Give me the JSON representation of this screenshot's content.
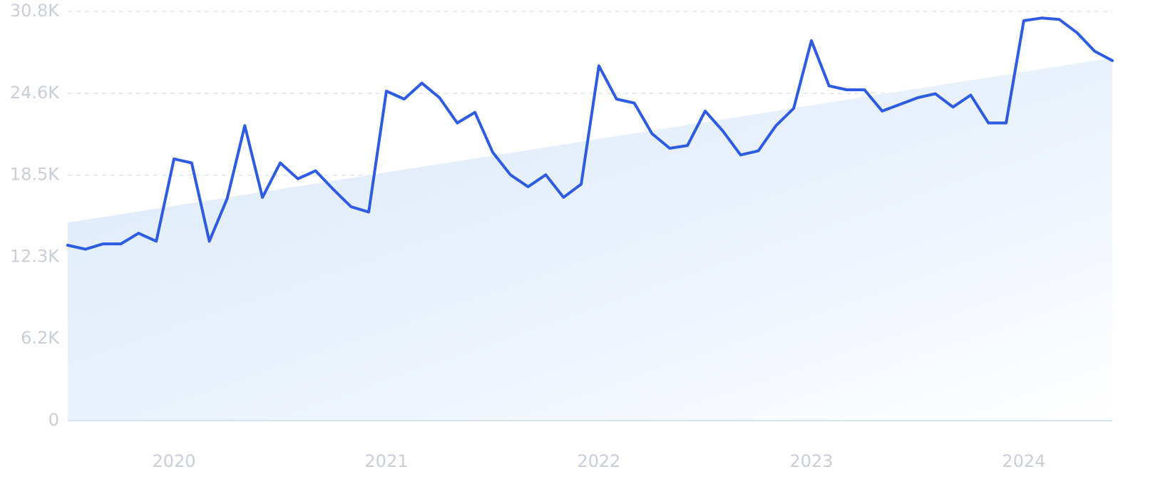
{
  "chart_data": {
    "type": "line",
    "title": "",
    "xlabel": "",
    "ylabel": "",
    "ylim": [
      0,
      30800
    ],
    "y_ticks": [
      {
        "value": 0,
        "label": "0"
      },
      {
        "value": 6160,
        "label": "6.2K"
      },
      {
        "value": 12320,
        "label": "12.3K"
      },
      {
        "value": 18480,
        "label": "18.5K"
      },
      {
        "value": 24640,
        "label": "24.6K"
      },
      {
        "value": 30800,
        "label": "30.8K"
      }
    ],
    "x_ticks": [
      {
        "value": "2020-01",
        "label": "2020"
      },
      {
        "value": "2021-01",
        "label": "2021"
      },
      {
        "value": "2022-01",
        "label": "2022"
      },
      {
        "value": "2023-01",
        "label": "2023"
      },
      {
        "value": "2024-01",
        "label": "2024"
      }
    ],
    "x_start": "2019-07",
    "x_end": "2024-06",
    "grid": true,
    "legend": "none",
    "colors": {
      "line": "#2d5be3",
      "trend_fill": "#dbe9fa",
      "grid": "#d6e2ee",
      "tick_text": "#c9ced8"
    },
    "trend": {
      "start": {
        "x": "2019-07",
        "y": 14900
      },
      "end": {
        "x": "2024-06",
        "y": 27300
      }
    },
    "x": [
      "2019-07",
      "2019-08",
      "2019-09",
      "2019-10",
      "2019-11",
      "2019-12",
      "2020-01",
      "2020-02",
      "2020-03",
      "2020-04",
      "2020-05",
      "2020-06",
      "2020-07",
      "2020-08",
      "2020-09",
      "2020-10",
      "2020-11",
      "2020-12",
      "2021-01",
      "2021-02",
      "2021-03",
      "2021-04",
      "2021-05",
      "2021-06",
      "2021-07",
      "2021-08",
      "2021-09",
      "2021-10",
      "2021-11",
      "2021-12",
      "2022-01",
      "2022-02",
      "2022-03",
      "2022-04",
      "2022-05",
      "2022-06",
      "2022-07",
      "2022-08",
      "2022-09",
      "2022-10",
      "2022-11",
      "2022-12",
      "2023-01",
      "2023-02",
      "2023-03",
      "2023-04",
      "2023-05",
      "2023-06",
      "2023-07",
      "2023-08",
      "2023-09",
      "2023-10",
      "2023-11",
      "2023-12",
      "2024-01",
      "2024-02",
      "2024-03",
      "2024-04",
      "2024-05",
      "2024-06"
    ],
    "series": [
      {
        "values": [
          13200,
          12900,
          13300,
          13300,
          14100,
          13500,
          19700,
          19400,
          13500,
          16700,
          22200,
          16800,
          19400,
          18200,
          18800,
          17400,
          16100,
          15700,
          24800,
          24200,
          25400,
          24300,
          22400,
          23200,
          20200,
          18500,
          17600,
          18500,
          16800,
          17800,
          26700,
          24200,
          23900,
          21600,
          20500,
          20700,
          23300,
          21800,
          20000,
          20300,
          22200,
          23500,
          28600,
          25200,
          24900,
          24900,
          23300,
          23800,
          24300,
          24600,
          23600,
          24500,
          22400,
          22400,
          30100,
          30300,
          30200,
          29200,
          27800,
          27100
        ]
      }
    ]
  }
}
